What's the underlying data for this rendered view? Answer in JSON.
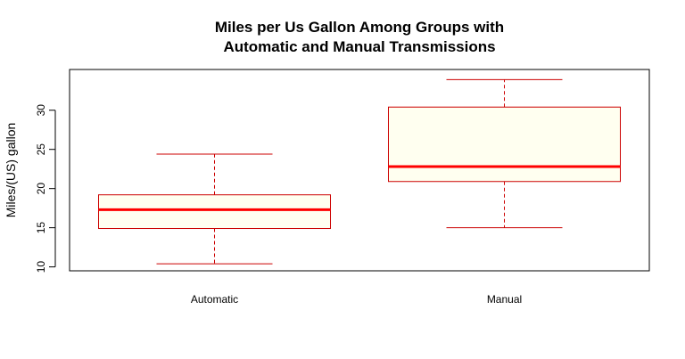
{
  "chart_data": {
    "type": "boxplot",
    "title": [
      "Miles per Us Gallon Among Groups with",
      "Automatic and Manual Transmissions"
    ],
    "xlabel": "",
    "ylabel": "Miles/(US) gallon",
    "ylim": [
      9.5,
      35.2
    ],
    "yticks": [
      10,
      15,
      20,
      25,
      30
    ],
    "categories": [
      "Automatic",
      "Manual"
    ],
    "boxes": [
      {
        "category": "Automatic",
        "min": 10.4,
        "q1": 14.9,
        "median": 17.3,
        "q3": 19.2,
        "max": 24.4
      },
      {
        "category": "Manual",
        "min": 15.0,
        "q1": 20.9,
        "median": 22.8,
        "q3": 30.4,
        "max": 33.9
      }
    ],
    "colors": {
      "box_fill": "#fffff0",
      "box_border": "#cc0000",
      "median": "#ff0000",
      "whisker": "#cc0000"
    },
    "grid": false,
    "legend": "none"
  }
}
